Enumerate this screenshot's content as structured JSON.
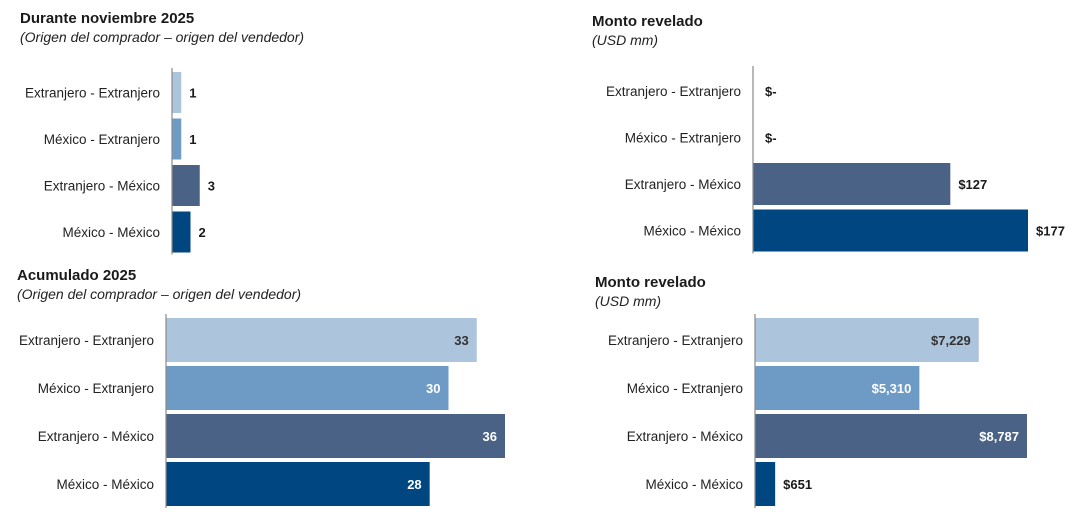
{
  "chart_data": [
    {
      "type": "bar",
      "orientation": "horizontal",
      "title": "Durante noviembre 2025",
      "subtitle": "(Origen del comprador – origen del vendedor)",
      "categories": [
        "Extranjero - Extranjero",
        "México - Extranjero",
        "Extranjero - México",
        "México - México"
      ],
      "values": [
        1,
        1,
        3,
        2
      ],
      "value_labels": [
        "1",
        "1",
        "3",
        "2"
      ],
      "colors": [
        "#adc4dd",
        "#6d9bc6",
        "#4a6286",
        "#004680"
      ],
      "xlim": [
        0,
        36
      ],
      "label_position": "outside"
    },
    {
      "type": "bar",
      "orientation": "horizontal",
      "title": "Monto revelado",
      "subtitle": "(USD mm)",
      "categories": [
        "Extranjero - Extranjero",
        "México - Extranjero",
        "Extranjero - México",
        "México - México"
      ],
      "values": [
        0,
        0,
        127,
        177
      ],
      "value_labels": [
        "$-",
        "$-",
        "$127",
        "$177"
      ],
      "colors": [
        "#adc4dd",
        "#6d9bc6",
        "#4a6286",
        "#004680"
      ],
      "xlim": [
        0,
        177
      ],
      "label_position": "outside"
    },
    {
      "type": "bar",
      "orientation": "horizontal",
      "title": "Acumulado 2025",
      "subtitle": "(Origen del comprador – origen del vendedor)",
      "categories": [
        "Extranjero - Extranjero",
        "México - Extranjero",
        "Extranjero - México",
        "México - México"
      ],
      "values": [
        33,
        30,
        36,
        28
      ],
      "value_labels": [
        "33",
        "30",
        "36",
        "28"
      ],
      "colors": [
        "#adc4dd",
        "#6d9bc6",
        "#4a6286",
        "#004680"
      ],
      "xlim": [
        0,
        36
      ],
      "label_position": "inside"
    },
    {
      "type": "bar",
      "orientation": "horizontal",
      "title": "Monto revelado",
      "subtitle": "(USD mm)",
      "categories": [
        "Extranjero - Extranjero",
        "México - Extranjero",
        "Extranjero - México",
        "México - México"
      ],
      "values": [
        7229,
        5310,
        8787,
        651
      ],
      "value_labels": [
        "$7,229",
        "$5,310",
        "$8,787",
        "$651"
      ],
      "colors": [
        "#adc4dd",
        "#6d9bc6",
        "#4a6286",
        "#004680"
      ],
      "xlim": [
        0,
        8787
      ],
      "label_position": "mixed"
    }
  ]
}
